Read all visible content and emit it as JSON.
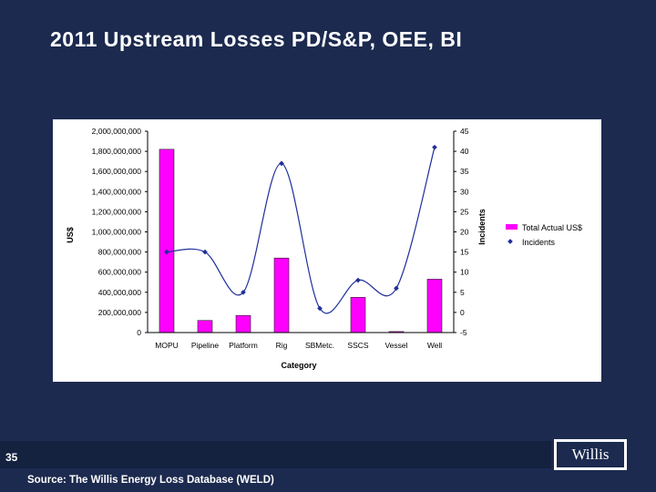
{
  "slide": {
    "title": "2011 Upstream Losses PD/S&P, OEE, BI",
    "page_number": "35",
    "source": "Source: The Willis Energy Loss Database (WELD)",
    "logo_text": "Willis"
  },
  "colors": {
    "background": "#1c2a4f",
    "bar_fill": "#ff00ff",
    "line_stroke": "#1f2f99",
    "marker": "#1f2f99"
  },
  "chart_data": {
    "type": "bar+line",
    "categories": [
      "MOPU",
      "Pipeline",
      "Platform",
      "Rig",
      "SBMetc.",
      "SSCS",
      "Vessel",
      "Well"
    ],
    "series": [
      {
        "name": "Total Actual US$",
        "type": "bar",
        "axis": "left",
        "values": [
          1820000000,
          120000000,
          170000000,
          740000000,
          0,
          350000000,
          10000000,
          530000000
        ]
      },
      {
        "name": "Incidents",
        "type": "line",
        "axis": "right",
        "values": [
          15,
          15,
          5,
          37,
          1,
          8,
          6,
          41
        ]
      }
    ],
    "y_left": {
      "label": "US$",
      "range": [
        0,
        2000000000
      ],
      "ticks": [
        "0",
        "200,000,000",
        "400,000,000",
        "600,000,000",
        "800,000,000",
        "1,000,000,000",
        "1,200,000,000",
        "1,400,000,000",
        "1,600,000,000",
        "1,800,000,000",
        "2,000,000,000"
      ]
    },
    "y_right": {
      "label": "Incidents",
      "range": [
        -5,
        45
      ],
      "ticks": [
        "-5",
        "0",
        "5",
        "10",
        "15",
        "20",
        "25",
        "30",
        "35",
        "40",
        "45"
      ]
    },
    "xlabel": "Category",
    "legend": [
      "Total Actual US$",
      "Incidents"
    ],
    "legend_position": "right",
    "grid": false
  }
}
